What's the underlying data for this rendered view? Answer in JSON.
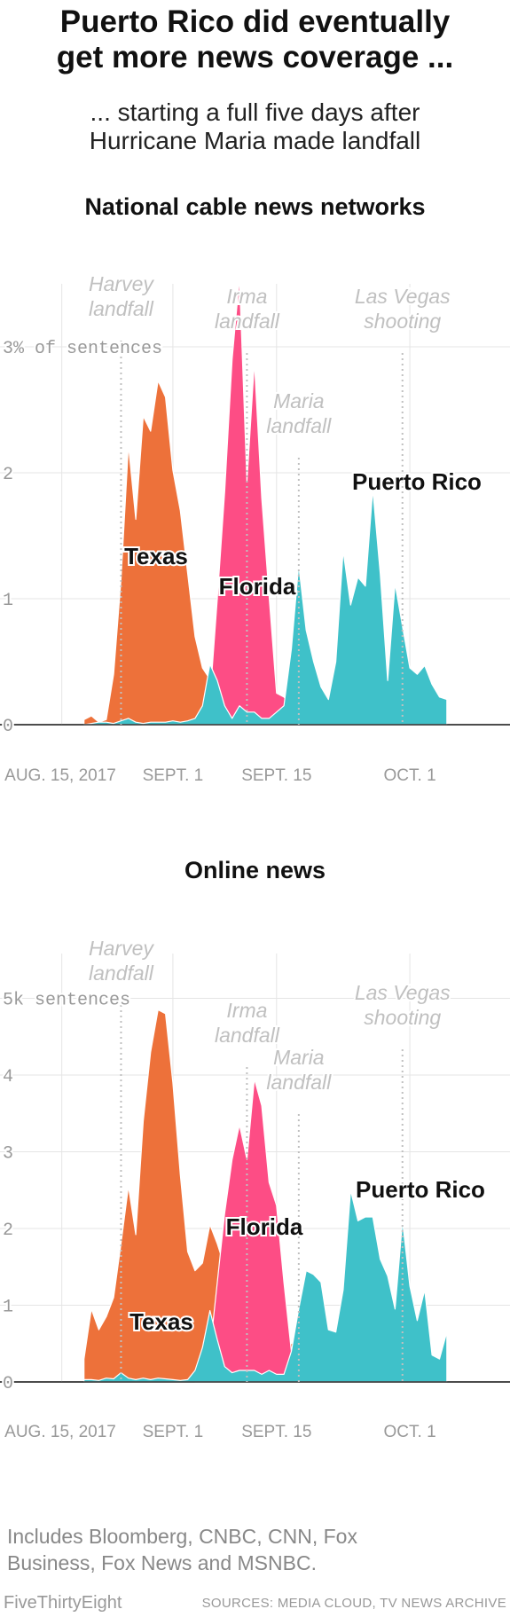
{
  "header": {
    "title_line1": "Puerto Rico did eventually",
    "title_line2": "get more news coverage ...",
    "subtitle_line1": "... starting a full five days after",
    "subtitle_line2": "Hurricane Maria made landfall"
  },
  "footer": {
    "note_line1": "Includes Bloomberg, CNBC, CNN, Fox",
    "note_line2": "Business, Fox News and MSNBC.",
    "credit": "FiveThirtyEight",
    "sources": "SOURCES: MEDIA CLOUD, TV NEWS ARCHIVE"
  },
  "colors": {
    "texas": "#ed713a",
    "florida": "#fd4d85",
    "puerto_rico": "#3fc1c9",
    "grid": "#e5e5e5",
    "annotation": "#c0c0c0",
    "axis_text": "#999999",
    "label_stroke": "#ffffff"
  },
  "chart_data": [
    {
      "type": "area",
      "title": "National cable news networks",
      "x_ticks": [
        "AUG. 15, 2017",
        "SEPT. 1",
        "SEPT. 15",
        "OCT. 1"
      ],
      "x_tick_days": [
        -1,
        14,
        28,
        46
      ],
      "y_ticks": [
        "0",
        "1",
        "2",
        "3% of sentences"
      ],
      "y_tick_values": [
        0,
        1,
        2,
        3
      ],
      "ylim": [
        0,
        3.6
      ],
      "xlim": [
        -1,
        52
      ],
      "events": [
        {
          "name": "Harvey landfall",
          "line1": "Harvey",
          "line2": "landfall",
          "day": 7
        },
        {
          "name": "Irma landfall",
          "line1": "Irma",
          "line2": "landfall",
          "day": 24
        },
        {
          "name": "Maria landfall",
          "line1": "Maria",
          "line2": "landfall",
          "day": 31
        },
        {
          "name": "Las Vegas shooting",
          "line1": "Las Vegas",
          "line2": "shooting",
          "day": 45
        }
      ],
      "series": [
        {
          "name": "Texas",
          "label": "Texas",
          "points": [
            [
              2,
              0.04
            ],
            [
              3,
              0.07
            ],
            [
              4,
              0.02
            ],
            [
              5,
              0.04
            ],
            [
              6,
              0.4
            ],
            [
              7,
              1.15
            ],
            [
              8,
              2.22
            ],
            [
              9,
              1.63
            ],
            [
              10,
              2.45
            ],
            [
              11,
              2.33
            ],
            [
              12,
              2.73
            ],
            [
              13,
              2.6
            ],
            [
              14,
              2.02
            ],
            [
              15,
              1.7
            ],
            [
              16,
              1.2
            ],
            [
              17,
              0.7
            ],
            [
              18,
              0.45
            ],
            [
              19,
              0.36
            ],
            [
              20,
              0.3
            ],
            [
              21,
              0.15
            ],
            [
              22,
              0.05
            ],
            [
              23,
              0.3
            ],
            [
              24,
              0.18
            ],
            [
              25,
              0.1
            ],
            [
              26,
              0.1
            ],
            [
              27,
              0.05
            ],
            [
              28,
              0.08
            ],
            [
              29,
              0.04
            ],
            [
              30,
              0.02
            ],
            [
              31,
              0
            ]
          ]
        },
        {
          "name": "Florida",
          "label": "Florida",
          "points": [
            [
              2,
              0
            ],
            [
              17,
              0
            ],
            [
              18,
              0.05
            ],
            [
              19,
              0.2
            ],
            [
              20,
              1.0
            ],
            [
              21,
              1.85
            ],
            [
              22,
              2.9
            ],
            [
              23,
              3.55
            ],
            [
              24,
              1.93
            ],
            [
              25,
              2.88
            ],
            [
              26,
              1.8
            ],
            [
              27,
              1.02
            ],
            [
              28,
              0.25
            ],
            [
              29,
              0.22
            ],
            [
              30,
              0.15
            ],
            [
              31,
              0
            ]
          ]
        },
        {
          "name": "Puerto Rico",
          "label": "Puerto Rico",
          "points": [
            [
              2,
              0
            ],
            [
              3,
              0.01
            ],
            [
              4,
              0.02
            ],
            [
              5,
              0.02
            ],
            [
              6,
              0.01
            ],
            [
              7,
              0.03
            ],
            [
              8,
              0.05
            ],
            [
              9,
              0.02
            ],
            [
              10,
              0.01
            ],
            [
              11,
              0.02
            ],
            [
              12,
              0.02
            ],
            [
              13,
              0.02
            ],
            [
              14,
              0.03
            ],
            [
              15,
              0.02
            ],
            [
              16,
              0.03
            ],
            [
              17,
              0.05
            ],
            [
              18,
              0.15
            ],
            [
              19,
              0.48
            ],
            [
              20,
              0.35
            ],
            [
              21,
              0.15
            ],
            [
              22,
              0.05
            ],
            [
              23,
              0.15
            ],
            [
              24,
              0.1
            ],
            [
              25,
              0.1
            ],
            [
              26,
              0.05
            ],
            [
              27,
              0.05
            ],
            [
              28,
              0.1
            ],
            [
              29,
              0.15
            ],
            [
              30,
              0.6
            ],
            [
              31,
              1.27
            ],
            [
              32,
              0.75
            ],
            [
              33,
              0.5
            ],
            [
              34,
              0.3
            ],
            [
              35,
              0.2
            ],
            [
              36,
              0.5
            ],
            [
              37,
              1.38
            ],
            [
              38,
              0.95
            ],
            [
              39,
              1.17
            ],
            [
              40,
              1.1
            ],
            [
              41,
              1.87
            ],
            [
              42,
              1.2
            ],
            [
              43,
              0.35
            ],
            [
              44,
              1.12
            ],
            [
              45,
              0.78
            ],
            [
              46,
              0.45
            ],
            [
              47,
              0.4
            ],
            [
              48,
              0.47
            ],
            [
              49,
              0.32
            ],
            [
              50,
              0.22
            ],
            [
              51,
              0.2
            ]
          ]
        }
      ]
    },
    {
      "type": "area",
      "title": "Online news",
      "x_ticks": [
        "AUG. 15, 2017",
        "SEPT. 1",
        "SEPT. 15",
        "OCT. 1"
      ],
      "x_tick_days": [
        -1,
        14,
        28,
        46
      ],
      "y_ticks": [
        "0",
        "1",
        "2",
        "3",
        "4",
        "5k sentences"
      ],
      "y_tick_values": [
        0,
        1,
        2,
        3,
        4,
        5
      ],
      "ylim": [
        0,
        5.4
      ],
      "xlim": [
        -1,
        52
      ],
      "events": [
        {
          "name": "Harvey landfall",
          "line1": "Harvey",
          "line2": "landfall",
          "day": 7
        },
        {
          "name": "Irma landfall",
          "line1": "Irma",
          "line2": "landfall",
          "day": 24
        },
        {
          "name": "Maria landfall",
          "line1": "Maria",
          "line2": "landfall",
          "day": 31
        },
        {
          "name": "Las Vegas shooting",
          "line1": "Las Vegas",
          "line2": "shooting",
          "day": 45
        }
      ],
      "series": [
        {
          "name": "Texas",
          "label": "Texas",
          "points": [
            [
              2,
              0.3
            ],
            [
              3,
              0.95
            ],
            [
              4,
              0.68
            ],
            [
              5,
              0.85
            ],
            [
              6,
              1.1
            ],
            [
              7,
              1.8
            ],
            [
              8,
              2.55
            ],
            [
              9,
              1.92
            ],
            [
              10,
              3.4
            ],
            [
              11,
              4.3
            ],
            [
              12,
              4.85
            ],
            [
              13,
              4.8
            ],
            [
              14,
              3.9
            ],
            [
              15,
              2.7
            ],
            [
              16,
              1.7
            ],
            [
              17,
              1.45
            ],
            [
              18,
              1.55
            ],
            [
              19,
              2.05
            ],
            [
              20,
              1.8
            ],
            [
              21,
              1.5
            ],
            [
              22,
              0.9
            ],
            [
              23,
              0.75
            ],
            [
              24,
              0.85
            ],
            [
              25,
              1.25
            ],
            [
              26,
              1.25
            ],
            [
              27,
              1.1
            ],
            [
              28,
              1.2
            ],
            [
              29,
              0.6
            ],
            [
              30,
              0.5
            ],
            [
              31,
              0.55
            ]
          ]
        },
        {
          "name": "Florida",
          "label": "Florida",
          "points": [
            [
              17,
              0
            ],
            [
              18,
              0.1
            ],
            [
              19,
              0.4
            ],
            [
              20,
              1.3
            ],
            [
              21,
              2.2
            ],
            [
              22,
              2.9
            ],
            [
              23,
              3.35
            ],
            [
              24,
              2.9
            ],
            [
              25,
              3.95
            ],
            [
              26,
              3.6
            ],
            [
              27,
              2.6
            ],
            [
              28,
              2.3
            ],
            [
              29,
              1.3
            ],
            [
              30,
              0.4
            ],
            [
              31,
              0
            ]
          ]
        },
        {
          "name": "Puerto Rico",
          "label": "Puerto Rico",
          "points": [
            [
              2,
              0.03
            ],
            [
              3,
              0.03
            ],
            [
              4,
              0.02
            ],
            [
              5,
              0.05
            ],
            [
              6,
              0.04
            ],
            [
              7,
              0.12
            ],
            [
              8,
              0.05
            ],
            [
              9,
              0.03
            ],
            [
              10,
              0.05
            ],
            [
              11,
              0.03
            ],
            [
              12,
              0.05
            ],
            [
              13,
              0.04
            ],
            [
              14,
              0.03
            ],
            [
              15,
              0.02
            ],
            [
              16,
              0.03
            ],
            [
              17,
              0.15
            ],
            [
              18,
              0.45
            ],
            [
              19,
              0.93
            ],
            [
              20,
              0.55
            ],
            [
              21,
              0.2
            ],
            [
              22,
              0.12
            ],
            [
              23,
              0.15
            ],
            [
              24,
              0.15
            ],
            [
              25,
              0.15
            ],
            [
              26,
              0.1
            ],
            [
              27,
              0.15
            ],
            [
              28,
              0.1
            ],
            [
              29,
              0.1
            ],
            [
              30,
              0.4
            ],
            [
              31,
              0.95
            ],
            [
              32,
              1.45
            ],
            [
              33,
              1.4
            ],
            [
              34,
              1.3
            ],
            [
              35,
              0.68
            ],
            [
              36,
              0.65
            ],
            [
              37,
              1.2
            ],
            [
              38,
              2.5
            ],
            [
              39,
              2.1
            ],
            [
              40,
              2.15
            ],
            [
              41,
              2.15
            ],
            [
              42,
              1.6
            ],
            [
              43,
              1.38
            ],
            [
              44,
              0.95
            ],
            [
              45,
              2.1
            ],
            [
              46,
              1.25
            ],
            [
              47,
              0.8
            ],
            [
              48,
              1.2
            ],
            [
              49,
              0.35
            ],
            [
              50,
              0.3
            ],
            [
              51,
              0.65
            ]
          ]
        }
      ]
    }
  ]
}
